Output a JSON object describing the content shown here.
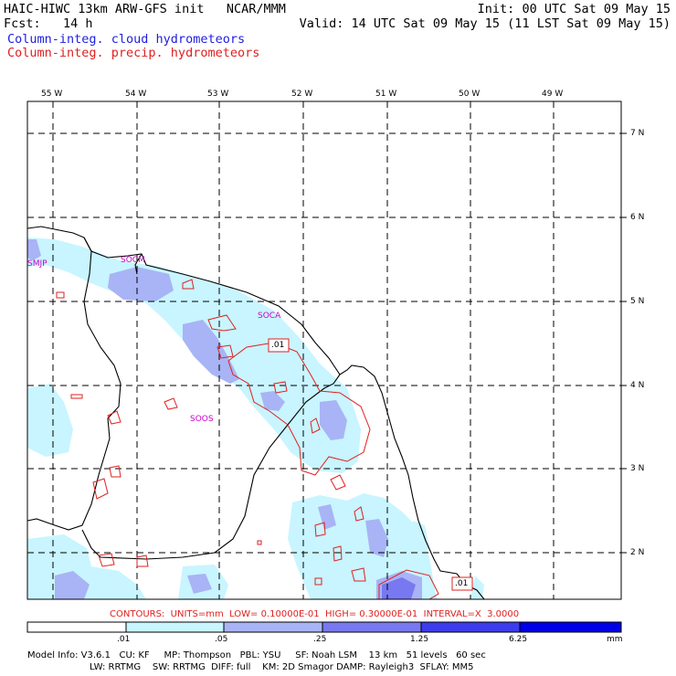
{
  "header": {
    "model_line": "HAIC-HIWC 13km ARW-GFS init   NCAR/MMM",
    "fcst_line": "Fcst:   14 h",
    "init_line": "Init: 00 UTC Sat 09 May 15",
    "valid_line": "Valid: 14 UTC Sat 09 May 15 (11 LST Sat 09 May 15)",
    "legend_cloud": "Column-integ. cloud hydrometeors",
    "legend_precip": "Column-integ. precip. hydrometeors"
  },
  "map": {
    "lon_labels": [
      "55 W",
      "54 W",
      "53 W",
      "52 W",
      "51 W",
      "50 W",
      "49 W"
    ],
    "lat_labels": [
      "7 N",
      "6 N",
      "5 N",
      "4 N",
      "3 N",
      "2 N"
    ],
    "stations": [
      "SMJP",
      "SOCM",
      "SOCA",
      "SOOS"
    ],
    "contour_labels": [
      ".01",
      ".01"
    ],
    "colors": {
      "coast": "#000000",
      "grid": "#000000",
      "precip_contour": "#e02020",
      "station": "#cc00cc"
    }
  },
  "contours_line": "CONTOURS:  UNITS=mm  LOW= 0.10000E-01  HIGH= 0.30000E-01  INTERVAL=X  3.0000",
  "colorbar": {
    "ticks": [
      ".01",
      ".05",
      ".25",
      "1.25",
      "6.25"
    ],
    "units": "mm",
    "colors": [
      "#ffffff",
      "#c8f5ff",
      "#a8b4f5",
      "#7878f0",
      "#3c3cec",
      "#0000e6"
    ]
  },
  "footer": {
    "line1": "Model Info: V3.6.1   CU: KF     MP: Thompson   PBL: YSU     SF: Noah LSM    13 km   51 levels   60 sec",
    "line2": "LW: RRTMG    SW: RRTMG  DIFF: full    KM: 2D Smagor DAMP: Rayleigh3  SFLAY: MM5"
  }
}
